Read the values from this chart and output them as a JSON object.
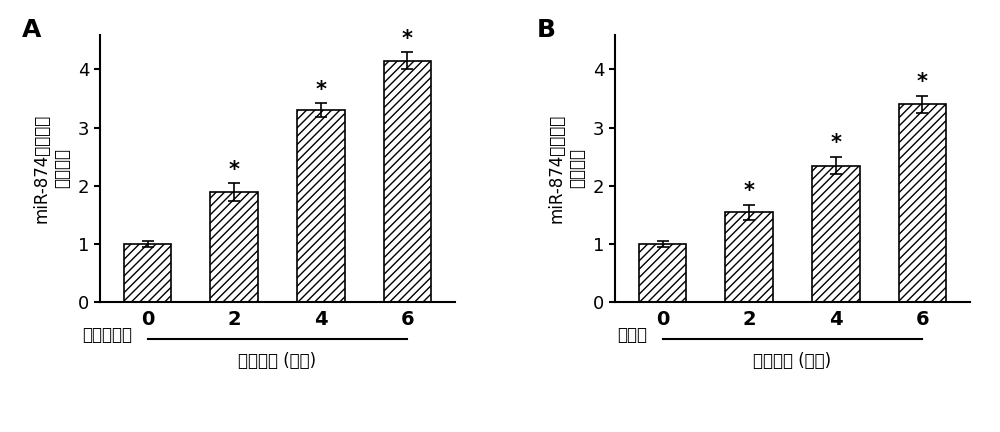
{
  "panel_A": {
    "label": "A",
    "categories": [
      "0",
      "2",
      "4",
      "6"
    ],
    "values": [
      1.0,
      1.9,
      3.3,
      4.15
    ],
    "errors": [
      0.05,
      0.15,
      0.12,
      0.15
    ],
    "significance": [
      false,
      true,
      true,
      true
    ],
    "ylabel_line1": "miR-874表达水平",
    "ylabel_line2": "升高倍数",
    "xlabel_top": "苯肆上腺素",
    "xlabel_bottom": "处理时间 (小时)",
    "ylim": [
      0,
      4.6
    ],
    "yticks": [
      0,
      1,
      2,
      3,
      4
    ]
  },
  "panel_B": {
    "label": "B",
    "categories": [
      "0",
      "2",
      "4",
      "6"
    ],
    "values": [
      1.0,
      1.55,
      2.35,
      3.4
    ],
    "errors": [
      0.05,
      0.13,
      0.15,
      0.15
    ],
    "significance": [
      false,
      true,
      true,
      true
    ],
    "ylabel_line1": "miR-874表达水平",
    "ylabel_line2": "升高倍数",
    "xlabel_top": "内皮素",
    "xlabel_bottom": "处理时间 (小时)",
    "ylim": [
      0,
      4.6
    ],
    "yticks": [
      0,
      1,
      2,
      3,
      4
    ]
  },
  "bar_color": "#ffffff",
  "bar_edgecolor": "#000000",
  "hatch": "////",
  "figsize": [
    10.0,
    4.32
  ],
  "dpi": 100
}
